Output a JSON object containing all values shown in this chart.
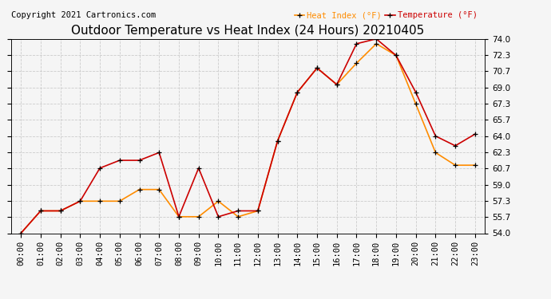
{
  "title": "Outdoor Temperature vs Heat Index (24 Hours) 20210405",
  "copyright": "Copyright 2021 Cartronics.com",
  "legend_heat": "Heat Index (°F)",
  "legend_temp": "Temperature (°F)",
  "hours": [
    "00:00",
    "01:00",
    "02:00",
    "03:00",
    "04:00",
    "05:00",
    "06:00",
    "07:00",
    "08:00",
    "09:00",
    "10:00",
    "11:00",
    "12:00",
    "13:00",
    "14:00",
    "15:00",
    "16:00",
    "17:00",
    "18:00",
    "19:00",
    "20:00",
    "21:00",
    "22:00",
    "23:00"
  ],
  "temperature": [
    54.0,
    56.3,
    56.3,
    57.3,
    60.7,
    61.5,
    61.5,
    62.3,
    55.7,
    60.7,
    55.7,
    56.3,
    56.3,
    63.5,
    68.5,
    71.0,
    69.3,
    73.5,
    74.0,
    72.3,
    68.5,
    64.0,
    63.0,
    64.2
  ],
  "heat_index": [
    54.0,
    56.3,
    56.3,
    57.3,
    57.3,
    57.3,
    58.5,
    58.5,
    55.7,
    55.7,
    57.3,
    55.7,
    56.3,
    63.5,
    68.5,
    71.0,
    69.3,
    71.5,
    73.5,
    72.3,
    67.3,
    62.3,
    61.0,
    61.0
  ],
  "temp_color": "#cc0000",
  "heat_color": "#ff8c00",
  "marker": "+",
  "marker_color": "black",
  "ylim_min": 54.0,
  "ylim_max": 74.0,
  "yticks": [
    54.0,
    55.7,
    57.3,
    59.0,
    60.7,
    62.3,
    64.0,
    65.7,
    67.3,
    69.0,
    70.7,
    72.3,
    74.0
  ],
  "background_color": "#f5f5f5",
  "grid_color": "#cccccc",
  "title_fontsize": 11,
  "tick_fontsize": 7.5,
  "copyright_fontsize": 7.5,
  "legend_fontsize": 7.5
}
